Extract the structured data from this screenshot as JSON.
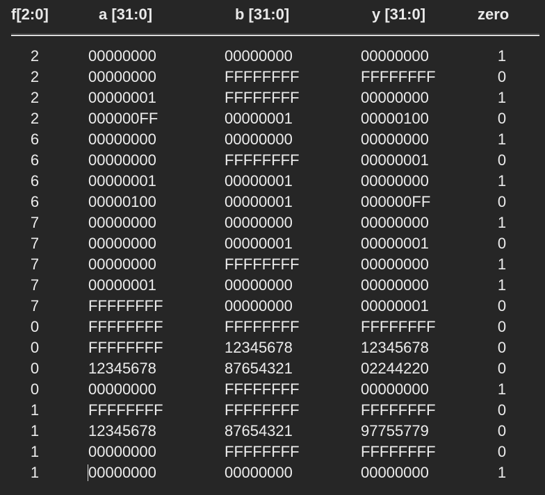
{
  "headers": {
    "f": "f[2:0]",
    "a": "a [31:0]",
    "b": "b [31:0]",
    "y": "y [31:0]",
    "zero": "zero"
  },
  "rows": [
    {
      "f": "2",
      "a": "00000000",
      "b": "00000000",
      "y": "00000000",
      "zero": "1"
    },
    {
      "f": "2",
      "a": "00000000",
      "b": "FFFFFFFF",
      "y": "FFFFFFFF",
      "zero": "0"
    },
    {
      "f": "2",
      "a": "00000001",
      "b": "FFFFFFFF",
      "y": "00000000",
      "zero": "1"
    },
    {
      "f": "2",
      "a": "000000FF",
      "b": "00000001",
      "y": "00000100",
      "zero": "0"
    },
    {
      "f": "6",
      "a": "00000000",
      "b": "00000000",
      "y": "00000000",
      "zero": "1"
    },
    {
      "f": "6",
      "a": "00000000",
      "b": "FFFFFFFF",
      "y": "00000001",
      "zero": "0"
    },
    {
      "f": "6",
      "a": "00000001",
      "b": "00000001",
      "y": "00000000",
      "zero": "1"
    },
    {
      "f": "6",
      "a": "00000100",
      "b": "00000001",
      "y": "000000FF",
      "zero": "0"
    },
    {
      "f": "7",
      "a": "00000000",
      "b": "00000000",
      "y": "00000000",
      "zero": "1"
    },
    {
      "f": "7",
      "a": "00000000",
      "b": "00000001",
      "y": "00000001",
      "zero": "0"
    },
    {
      "f": "7",
      "a": "00000000",
      "b": "FFFFFFFF",
      "y": "00000000",
      "zero": "1"
    },
    {
      "f": "7",
      "a": "00000001",
      "b": "00000000",
      "y": "00000000",
      "zero": "1"
    },
    {
      "f": "7",
      "a": "FFFFFFFF",
      "b": "00000000",
      "y": "00000001",
      "zero": "0"
    },
    {
      "f": "0",
      "a": "FFFFFFFF",
      "b": "FFFFFFFF",
      "y": "FFFFFFFF",
      "zero": "0"
    },
    {
      "f": "0",
      "a": "FFFFFFFF",
      "b": "12345678",
      "y": "12345678",
      "zero": "0"
    },
    {
      "f": "0",
      "a": "12345678",
      "b": "87654321",
      "y": "02244220",
      "zero": "0"
    },
    {
      "f": "0",
      "a": "00000000",
      "b": "FFFFFFFF",
      "y": "00000000",
      "zero": "1"
    },
    {
      "f": "1",
      "a": "FFFFFFFF",
      "b": "FFFFFFFF",
      "y": "FFFFFFFF",
      "zero": "0"
    },
    {
      "f": "1",
      "a": "12345678",
      "b": "87654321",
      "y": "97755779",
      "zero": "0"
    },
    {
      "f": "1",
      "a": "00000000",
      "b": "FFFFFFFF",
      "y": "FFFFFFFF",
      "zero": "0"
    },
    {
      "f": "1",
      "a": "00000000",
      "b": "00000000",
      "y": "00000000",
      "zero": "1"
    }
  ]
}
